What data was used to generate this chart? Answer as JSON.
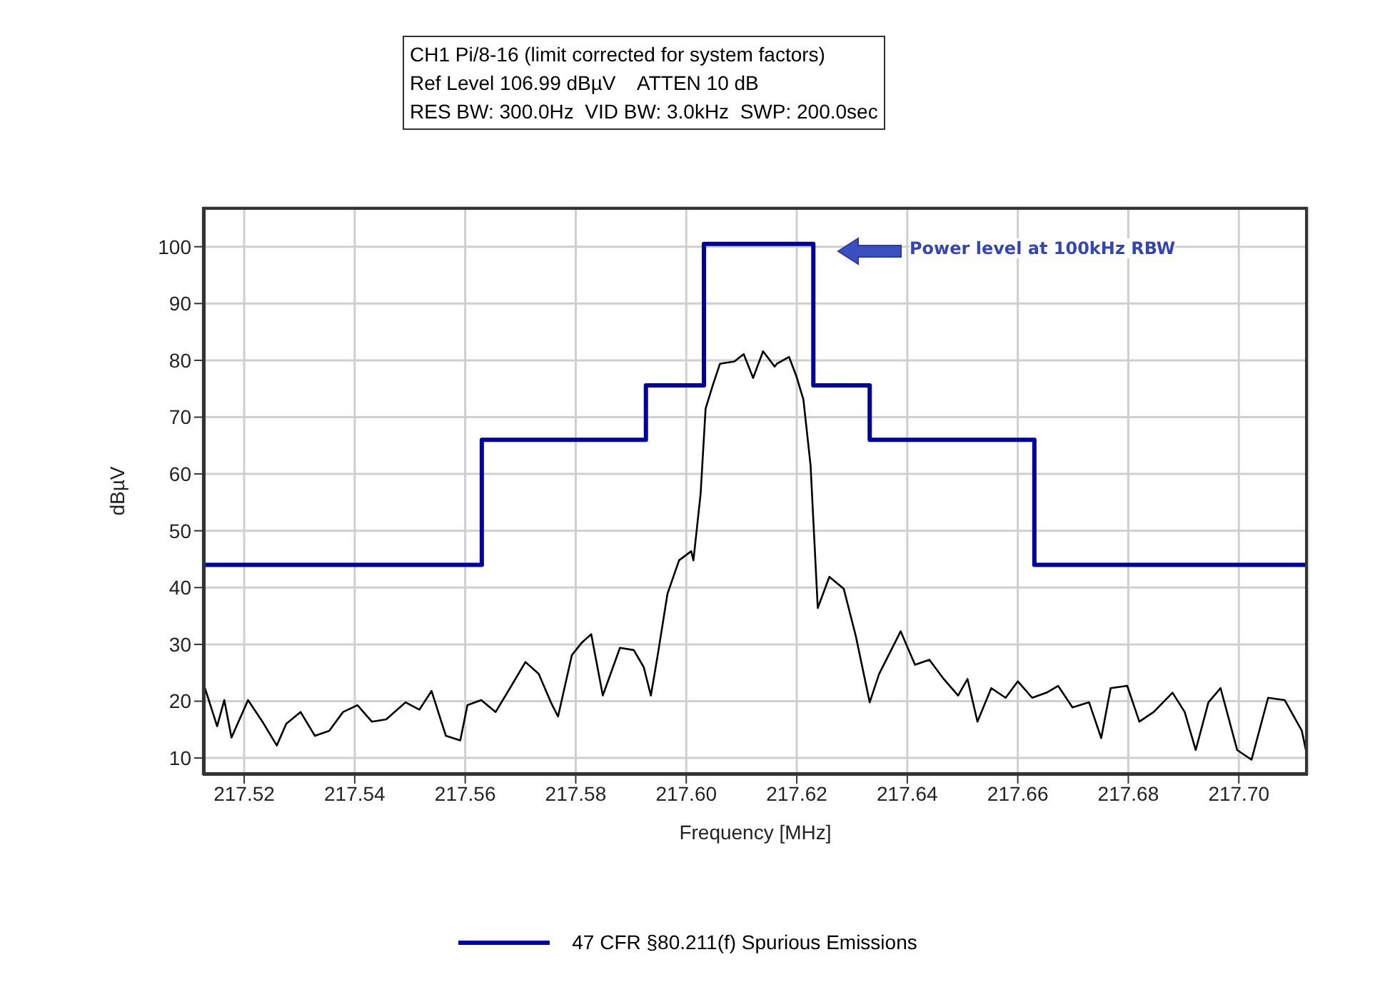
{
  "chart_data": {
    "type": "line",
    "title": "CH1 Pi/8-16 (limit corrected for system factors)",
    "subtitle": "Ref Level 106.99 dBµV    ATTEN 10 dB",
    "xlabel": "Frequency [MHz]",
    "ylabel": "dBµV",
    "annotations": [
      "RES BW: 300.0Hz  VID BW: 3.0kHz  SWP: 200.0sec",
      "Power level at 100kHz RBW"
    ],
    "xlim": [
      217.5125,
      217.7125
    ],
    "ylim": [
      7,
      107
    ],
    "xticks": [
      217.52,
      217.54,
      217.56,
      217.58,
      {
        "value": 217.6,
        "label": "217.60"
      },
      217.62,
      217.64,
      217.66,
      217.68,
      {
        "value": 217.7,
        "label": "217.70"
      }
    ],
    "yticks": [
      10,
      20,
      30,
      40,
      50,
      60,
      70,
      80,
      90,
      100
    ],
    "grid": true,
    "legend": "bottom",
    "marker": "none",
    "line_style": "solid",
    "series": [
      {
        "name": "47 CFR §80.211(f) Spurious Emissions",
        "type": "step",
        "color": "#0000a0",
        "x": [
          217.5125,
          217.563,
          217.5927,
          217.6032,
          217.623,
          217.6332,
          217.663,
          217.7125
        ],
        "values": [
          44,
          66,
          75.6,
          100.5,
          75.6,
          66,
          44,
          44
        ]
      },
      {
        "color": "#000000",
        "x": [
          217.5129,
          217.5151,
          217.5164,
          217.5177,
          217.5207,
          217.5233,
          217.5259,
          217.5276,
          217.5302,
          217.5328,
          217.5354,
          217.5379,
          217.5405,
          217.5431,
          217.5457,
          217.5492,
          217.5517,
          217.5539,
          217.5565,
          217.5591,
          217.5604,
          217.5629,
          217.5655,
          217.5681,
          217.5709,
          217.5733,
          217.5755,
          217.5768,
          217.5793,
          217.581,
          217.5828,
          217.5849,
          217.588,
          217.5905,
          217.5923,
          217.5936,
          217.5949,
          217.5966,
          217.5987,
          217.6009,
          217.6013,
          217.6026,
          217.6035,
          217.6048,
          217.6061,
          217.6087,
          217.6104,
          217.6121,
          217.6139,
          217.616,
          217.6164,
          217.6186,
          217.6199,
          217.6212,
          217.6225,
          217.6238,
          217.6259,
          217.6285,
          217.6307,
          217.6332,
          217.6349,
          217.6388,
          217.6414,
          217.644,
          217.6466,
          217.6492,
          217.6509,
          217.6527,
          217.6552,
          217.6578,
          217.66,
          217.6626,
          217.6652,
          217.6673,
          217.6699,
          217.6729,
          217.6751,
          217.6768,
          217.6798,
          217.682,
          217.6846,
          217.688,
          217.6902,
          217.6922,
          217.6945,
          217.6967,
          217.6997,
          217.7023,
          217.7053,
          217.7083,
          217.7114,
          217.7125
        ],
        "values": [
          22.3,
          15.6,
          20.2,
          13.6,
          20.2,
          16.4,
          12.2,
          16,
          18.1,
          13.9,
          14.8,
          18.1,
          19.3,
          16.4,
          16.8,
          19.8,
          18.5,
          21.8,
          13.9,
          13.1,
          19.3,
          20.2,
          18.1,
          22.3,
          26.9,
          24.8,
          19.8,
          17.3,
          28.1,
          30.2,
          31.8,
          21,
          29.4,
          29,
          26,
          21,
          28.5,
          38.9,
          44.8,
          46.4,
          44.8,
          56.5,
          71.5,
          75.6,
          79.4,
          79.8,
          81.1,
          76.9,
          81.6,
          78.9,
          79.4,
          80.6,
          77.3,
          73.1,
          61.5,
          36.4,
          41.9,
          39.8,
          31.4,
          19.8,
          24.8,
          32.3,
          26.4,
          27.3,
          23.9,
          21,
          23.9,
          16.4,
          22.3,
          20.6,
          23.5,
          20.6,
          21.5,
          22.7,
          18.9,
          19.8,
          13.5,
          22.3,
          22.7,
          16.4,
          18.1,
          21.5,
          18.1,
          11.4,
          19.8,
          22.3,
          11.4,
          9.7,
          20.6,
          20.2,
          14.8,
          9.7
        ]
      }
    ]
  }
}
